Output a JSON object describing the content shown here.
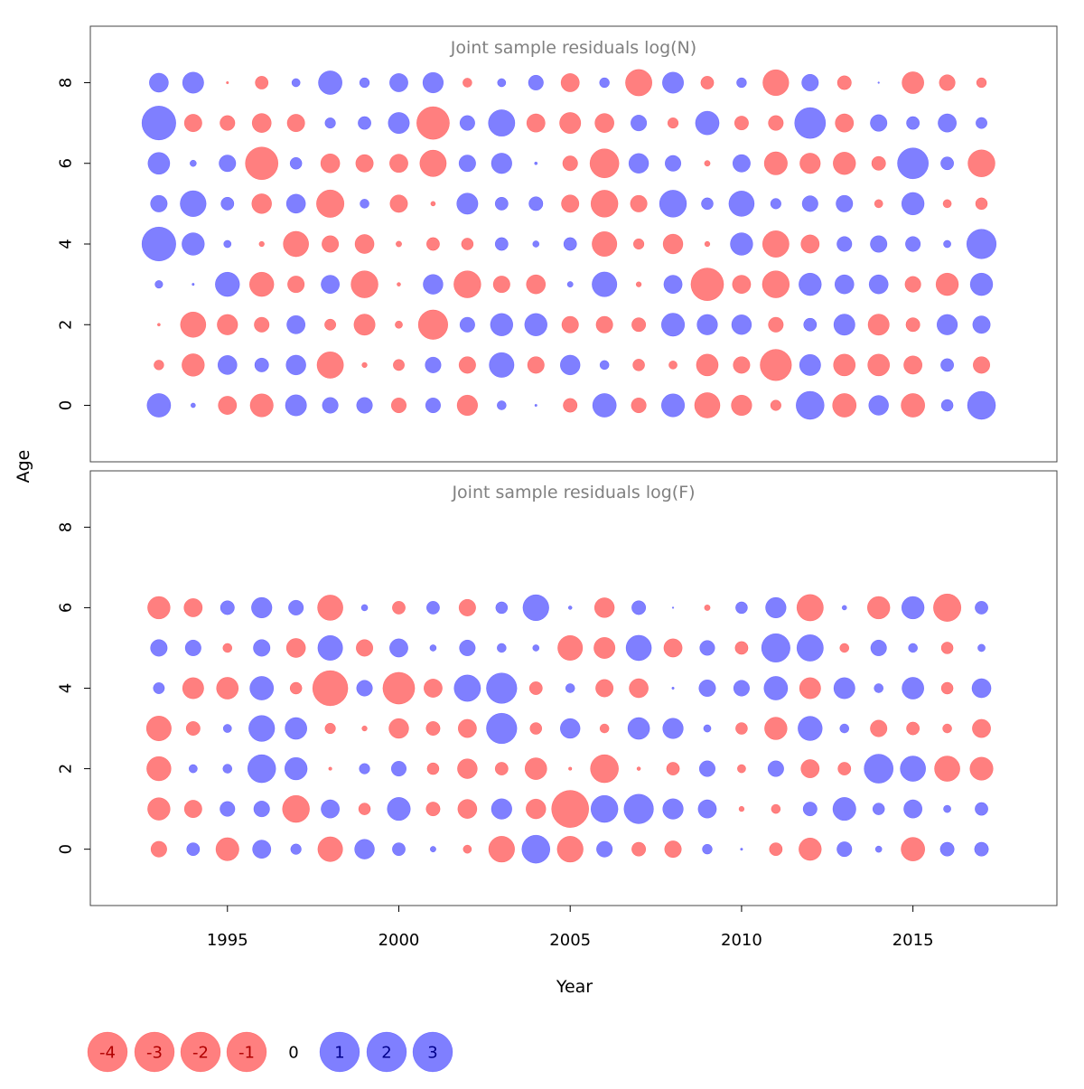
{
  "figure": {
    "xlabel": "Year",
    "ylabel": "Age"
  },
  "chart_data": [
    {
      "type": "scatter",
      "title": "Joint sample residuals log(N)",
      "xlabel": "Year",
      "ylabel": "Age",
      "xlim": [
        1991.0,
        2019.2
      ],
      "ylim": [
        -1.4,
        9.4
      ],
      "yticks": [
        0,
        2,
        4,
        6,
        8
      ],
      "xticks": [
        1995,
        2000,
        2005,
        2010,
        2015
      ],
      "show_xticks": false,
      "encoding": "bubble area proportional to |residual|; red = negative, blue = positive",
      "x": [
        1993,
        1994,
        1995,
        1996,
        1997,
        1998,
        1999,
        2000,
        2001,
        2002,
        2003,
        2004,
        2005,
        2006,
        2007,
        2008,
        2009,
        2010,
        2011,
        2012,
        2013,
        2014,
        2015,
        2016,
        2017
      ],
      "ages": [
        0,
        1,
        2,
        3,
        4,
        5,
        6,
        7,
        8
      ],
      "residuals": [
        [
          2.0,
          0.08,
          -1.2,
          -1.9,
          1.6,
          0.9,
          0.9,
          -0.8,
          0.8,
          -1.5,
          0.3,
          0.02,
          -0.7,
          2.0,
          -0.8,
          1.9,
          -2.3,
          -1.5,
          -0.4,
          2.8,
          -2.0,
          1.4,
          -2.0,
          0.5,
          2.8
        ],
        [
          -0.35,
          -1.8,
          1.3,
          0.7,
          1.4,
          -2.5,
          -0.1,
          -0.45,
          0.9,
          -1.0,
          2.2,
          -1.0,
          1.4,
          0.3,
          -0.5,
          -0.25,
          -1.7,
          -1.0,
          -3.5,
          1.6,
          -1.7,
          -1.7,
          -1.2,
          0.6,
          -1.0
        ],
        [
          -0.03,
          -2.3,
          -1.5,
          -0.8,
          1.2,
          -0.45,
          -1.6,
          -0.2,
          -3.1,
          0.8,
          1.8,
          1.8,
          -1.0,
          -1.0,
          -0.7,
          1.9,
          1.5,
          1.4,
          -0.8,
          0.6,
          1.6,
          -1.6,
          -0.7,
          1.5,
          1.1
        ],
        [
          0.22,
          0.02,
          2.1,
          -2.1,
          -1.0,
          1.2,
          -2.6,
          -0.05,
          1.4,
          -2.6,
          -1.0,
          -1.3,
          0.12,
          2.2,
          -0.1,
          1.2,
          -3.8,
          -1.2,
          -2.6,
          1.8,
          1.3,
          1.3,
          -0.9,
          -1.8,
          1.8
        ],
        [
          4.1,
          1.8,
          0.2,
          -0.1,
          -2.3,
          -1.0,
          -1.3,
          -0.12,
          -0.6,
          -0.5,
          0.6,
          0.15,
          0.6,
          -2.2,
          -0.4,
          -1.4,
          -0.1,
          1.8,
          -2.5,
          -1.2,
          0.8,
          1.0,
          0.8,
          0.2,
          3.1
        ],
        [
          1.0,
          2.4,
          0.6,
          -1.4,
          1.3,
          -2.7,
          0.3,
          -1.1,
          -0.08,
          1.6,
          0.6,
          0.7,
          -1.1,
          -2.6,
          -1.0,
          2.6,
          0.5,
          2.3,
          0.4,
          0.9,
          1.0,
          -0.25,
          1.8,
          -0.25,
          -0.5
        ],
        [
          1.7,
          0.15,
          1.0,
          -3.8,
          0.5,
          -1.3,
          -1.1,
          -1.2,
          -2.5,
          1.0,
          1.5,
          0.03,
          -0.8,
          -3.0,
          1.4,
          0.9,
          -0.12,
          1.1,
          -1.9,
          -1.5,
          -1.8,
          -0.7,
          3.4,
          0.6,
          -2.6
        ],
        [
          4.1,
          -1.1,
          -0.8,
          -1.3,
          -1.1,
          0.4,
          0.6,
          1.6,
          -3.8,
          0.8,
          2.5,
          -1.2,
          -1.6,
          -1.3,
          0.9,
          -0.4,
          2.0,
          -0.7,
          -0.8,
          3.4,
          -1.2,
          1.0,
          0.6,
          1.2,
          0.45
        ],
        [
          1.3,
          1.6,
          -0.02,
          -0.6,
          0.25,
          2.0,
          0.35,
          1.2,
          1.5,
          -0.3,
          0.25,
          0.8,
          -1.2,
          0.35,
          -2.5,
          1.6,
          -0.6,
          0.35,
          -2.4,
          1.0,
          -0.7,
          0.01,
          -1.7,
          -0.9,
          -0.35
        ]
      ]
    },
    {
      "type": "scatter",
      "title": "Joint sample residuals log(F)",
      "xlabel": "Year",
      "ylabel": "Age",
      "xlim": [
        1991.0,
        2019.2
      ],
      "ylim": [
        -1.4,
        9.4
      ],
      "yticks": [
        0,
        2,
        4,
        6,
        8
      ],
      "xticks": [
        1995,
        2000,
        2005,
        2010,
        2015
      ],
      "show_xticks": true,
      "encoding": "bubble area proportional to |residual|; red = negative, blue = positive",
      "x": [
        1993,
        1994,
        1995,
        1996,
        1997,
        1998,
        1999,
        2000,
        2001,
        2002,
        2003,
        2004,
        2005,
        2006,
        2007,
        2008,
        2009,
        2010,
        2011,
        2012,
        2013,
        2014,
        2015,
        2016,
        2017
      ],
      "ages": [
        0,
        1,
        2,
        3,
        4,
        5,
        6
      ],
      "residuals": [
        [
          -0.9,
          0.6,
          -1.9,
          1.2,
          0.4,
          -2.2,
          1.4,
          0.6,
          0.12,
          -0.25,
          -2.4,
          2.8,
          -2.4,
          0.9,
          -0.7,
          -1.0,
          0.35,
          0.02,
          -0.6,
          -1.8,
          0.8,
          0.15,
          -2.0,
          0.7,
          0.7
        ],
        [
          -1.8,
          -1.1,
          0.8,
          0.9,
          -2.6,
          1.2,
          -0.5,
          1.9,
          -0.7,
          -1.3,
          1.5,
          -1.4,
          -4.9,
          2.6,
          3.1,
          1.5,
          1.2,
          -0.1,
          -0.3,
          0.7,
          1.9,
          0.5,
          1.2,
          0.2,
          0.6
        ],
        [
          -2.1,
          0.25,
          0.3,
          2.8,
          1.8,
          -0.04,
          0.4,
          0.8,
          -0.5,
          -1.4,
          -0.6,
          -1.7,
          -0.04,
          -2.8,
          -0.05,
          -0.6,
          0.9,
          -0.25,
          0.9,
          -1.2,
          -0.6,
          3.0,
          2.3,
          -2.3,
          -1.9
        ],
        [
          -2.2,
          -0.7,
          0.25,
          2.4,
          1.7,
          -0.4,
          -0.1,
          -1.4,
          -0.7,
          -1.2,
          3.3,
          -0.5,
          1.4,
          -0.3,
          1.7,
          1.5,
          0.2,
          -0.5,
          -1.8,
          2.1,
          0.3,
          -1.0,
          -0.6,
          -0.3,
          -1.2
        ],
        [
          0.45,
          -1.6,
          -1.7,
          2.0,
          -0.5,
          -4.4,
          0.9,
          -3.6,
          -1.2,
          2.5,
          3.3,
          -0.6,
          0.3,
          -1.1,
          -1.3,
          0.02,
          1.0,
          0.9,
          2.0,
          -1.6,
          1.6,
          0.3,
          1.7,
          -0.5,
          1.3
        ],
        [
          1.0,
          0.9,
          -0.3,
          1.0,
          -1.3,
          2.2,
          -1.0,
          1.2,
          0.15,
          0.9,
          0.3,
          0.15,
          -2.2,
          -1.6,
          2.3,
          -1.2,
          0.8,
          -0.6,
          2.9,
          2.5,
          -0.3,
          0.9,
          0.3,
          -0.5,
          0.2
        ],
        [
          -1.8,
          -1.2,
          0.7,
          1.5,
          0.8,
          -2.3,
          0.15,
          -0.6,
          0.6,
          -1.0,
          0.5,
          2.4,
          0.05,
          -1.4,
          0.7,
          0.01,
          -0.12,
          0.5,
          1.5,
          -2.5,
          0.08,
          -1.8,
          1.8,
          -2.7,
          0.6
        ]
      ]
    }
  ],
  "legend": {
    "items": [
      {
        "label": "-4",
        "value": -4
      },
      {
        "label": "-3",
        "value": -3
      },
      {
        "label": "-2",
        "value": -2
      },
      {
        "label": "-1",
        "value": -1
      },
      {
        "label": "0",
        "value": 0
      },
      {
        "label": "1",
        "value": 1
      },
      {
        "label": "2",
        "value": 2
      },
      {
        "label": "3",
        "value": 3
      }
    ]
  },
  "colors": {
    "negative": "#ff0000",
    "positive": "#0000ff",
    "bubble_opacity": 0.5,
    "title": "#808080"
  }
}
